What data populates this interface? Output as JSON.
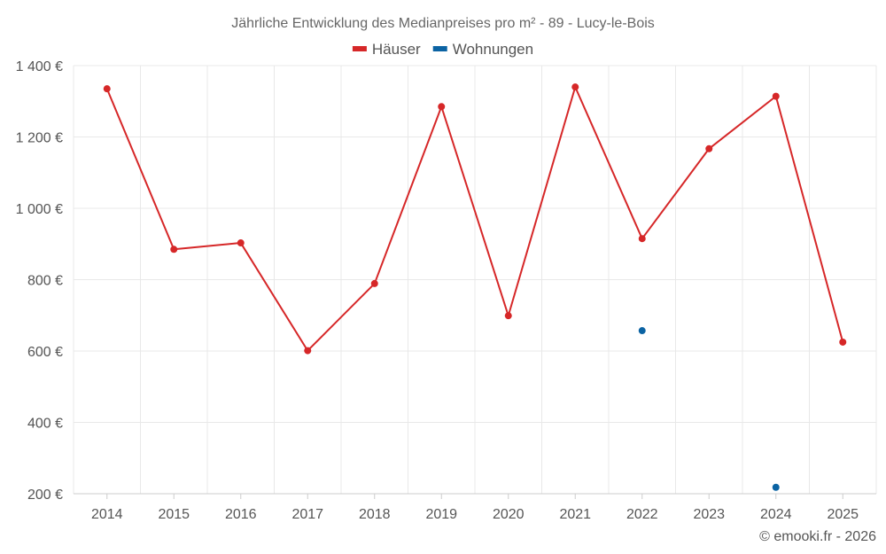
{
  "chart_data": {
    "type": "line",
    "title": "Jährliche Entwicklung des Medianpreises pro m² - 89 - Lucy-le-Bois",
    "xlabel": "",
    "ylabel": "",
    "categories": [
      "2014",
      "2015",
      "2016",
      "2017",
      "2018",
      "2019",
      "2020",
      "2021",
      "2022",
      "2023",
      "2024",
      "2025"
    ],
    "series": [
      {
        "name": "Häuser",
        "color": "#d62728",
        "values": [
          1335,
          885,
          903,
          601,
          789,
          1285,
          699,
          1340,
          915,
          1167,
          1314,
          625
        ]
      },
      {
        "name": "Wohnungen",
        "color": "#0b63a3",
        "values": [
          null,
          null,
          null,
          null,
          null,
          null,
          null,
          null,
          657,
          null,
          218,
          null
        ]
      }
    ],
    "ylim": [
      200,
      1400
    ],
    "yticks": [
      {
        "value": 200,
        "label": "200 €"
      },
      {
        "value": 400,
        "label": "400 €"
      },
      {
        "value": 600,
        "label": "600 €"
      },
      {
        "value": 800,
        "label": "800 €"
      },
      {
        "value": 1000,
        "label": "1 000 €"
      },
      {
        "value": 1200,
        "label": "1 200 €"
      },
      {
        "value": 1400,
        "label": "1 400 €"
      }
    ],
    "grid": true,
    "legend_position": "top-center"
  },
  "credit": "© emooki.fr - 2026"
}
